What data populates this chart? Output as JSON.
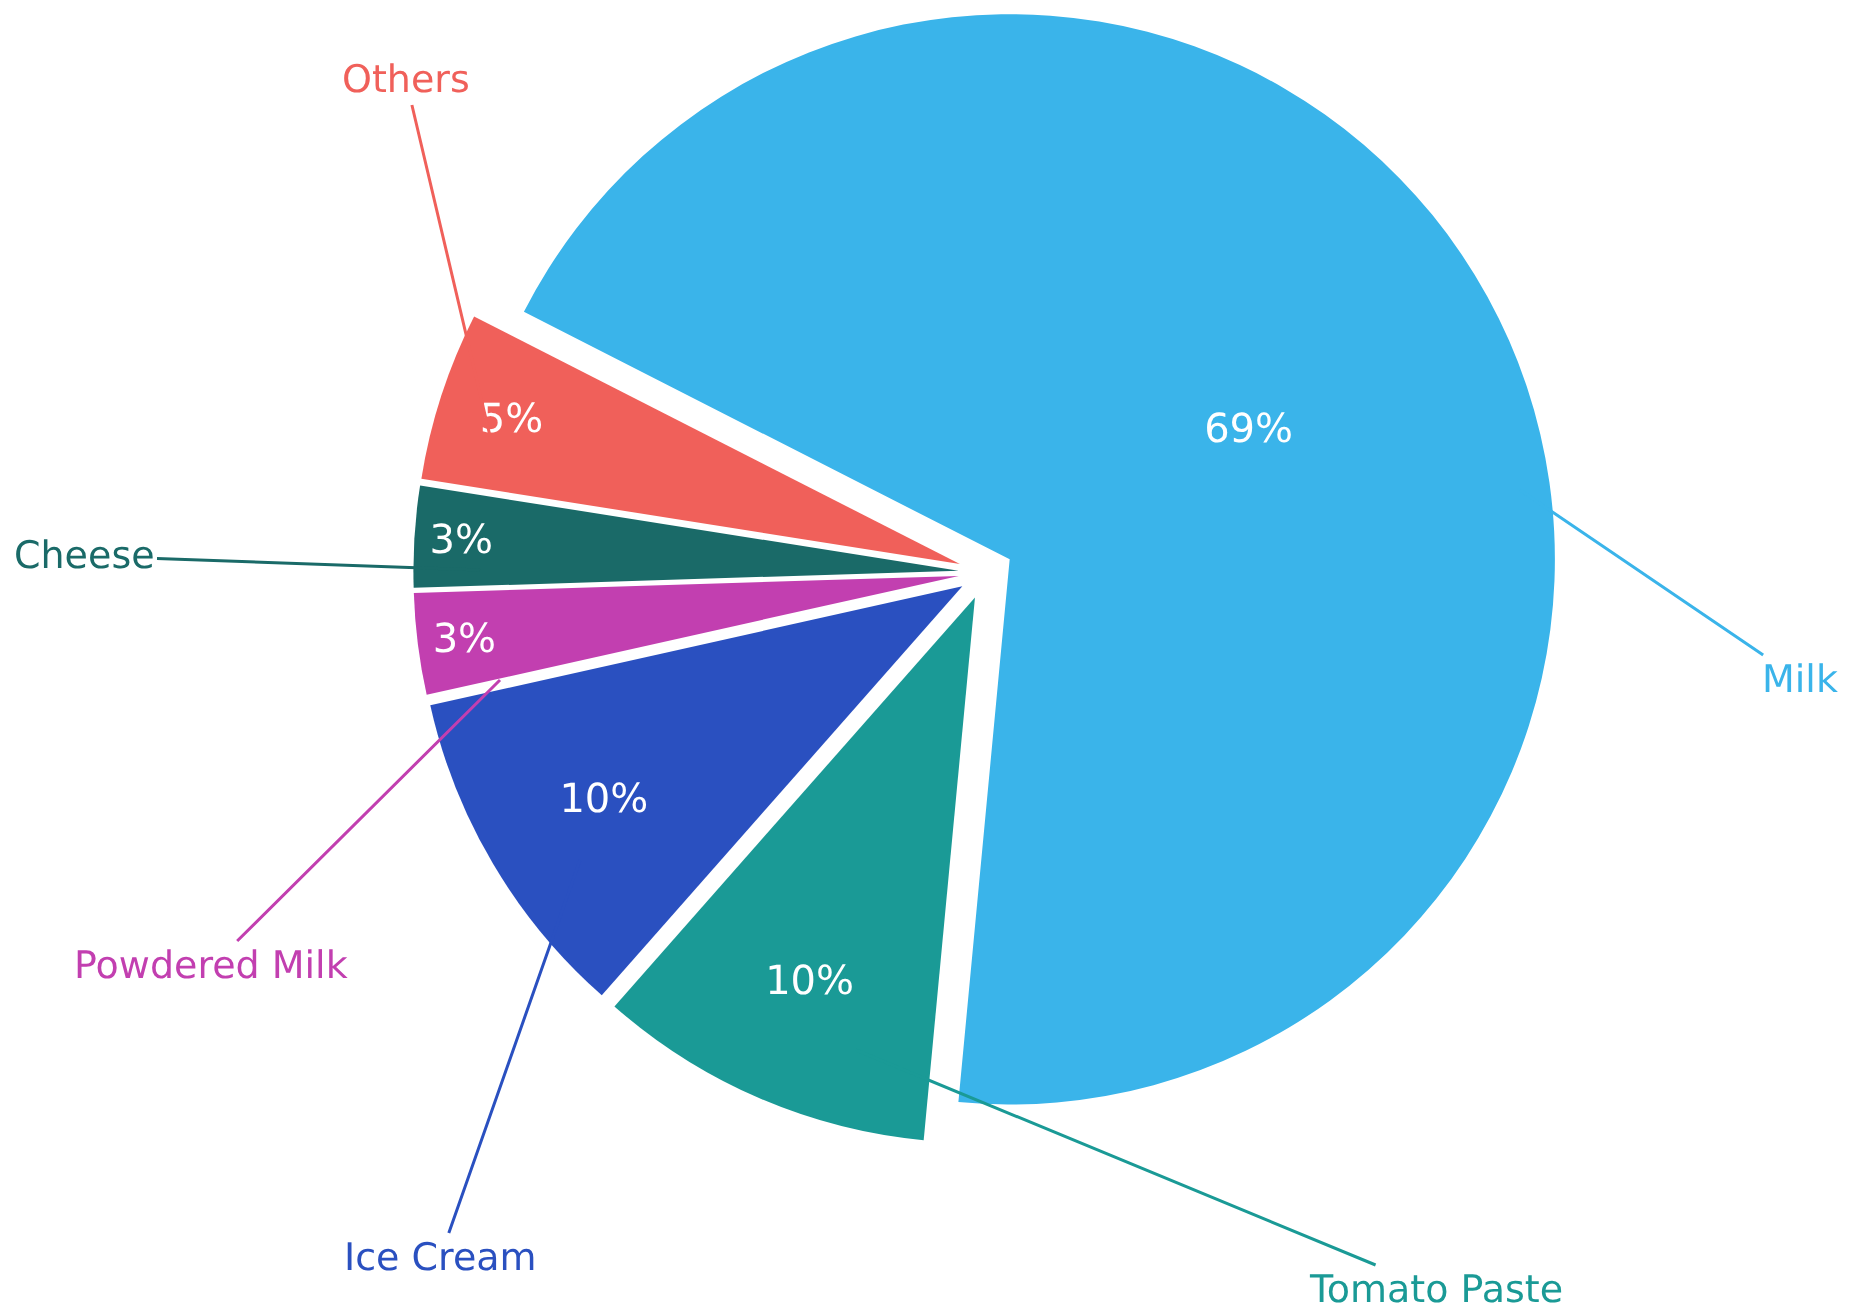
{
  "chart_data": {
    "type": "pie",
    "categories": [
      "Milk",
      "Tomato Paste",
      "Ice Cream",
      "Powdered Milk",
      "Cheese",
      "Others"
    ],
    "values": [
      69,
      10,
      10,
      3,
      3,
      5
    ],
    "value_labels": [
      "69%",
      "10%",
      "10%",
      "3%",
      "3%",
      "5%"
    ],
    "colors": [
      "#3ab4ea",
      "#1a9a96",
      "#2a50c0",
      "#c23fb0",
      "#1a6a68",
      "#f0605a"
    ],
    "legend": false
  }
}
